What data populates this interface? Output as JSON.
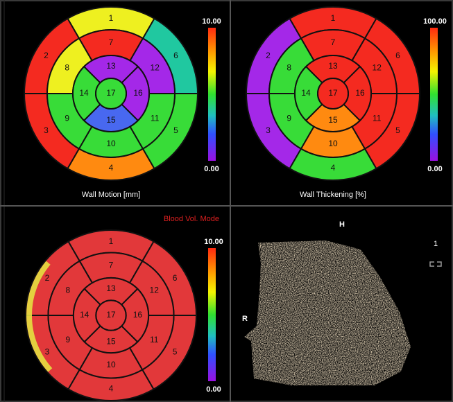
{
  "panels": [
    {
      "title": "Wall Motion [mm]",
      "scale_max": "10.00",
      "scale_min": "0.00",
      "segments": [
        "1",
        "2",
        "3",
        "4",
        "5",
        "6",
        "7",
        "8",
        "9",
        "10",
        "11",
        "12",
        "13",
        "14",
        "15",
        "16",
        "17"
      ]
    },
    {
      "title": "Wall Thickening [%]",
      "scale_max": "100.00",
      "scale_min": "0.00",
      "segments": [
        "1",
        "2",
        "3",
        "4",
        "5",
        "6",
        "7",
        "8",
        "9",
        "10",
        "11",
        "12",
        "13",
        "14",
        "15",
        "16",
        "17"
      ]
    },
    {
      "mode": "Blood Vol. Mode",
      "scale_max": "10.00",
      "scale_min": "0.00",
      "segments": [
        "1",
        "2",
        "3",
        "4",
        "5",
        "6",
        "7",
        "8",
        "9",
        "10",
        "11",
        "12",
        "13",
        "14",
        "15",
        "16",
        "17"
      ]
    }
  ],
  "viewer": {
    "top": "H",
    "side": "R",
    "index": "1"
  }
}
